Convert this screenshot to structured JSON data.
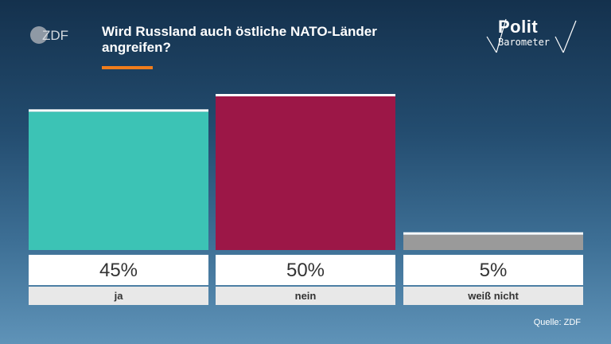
{
  "header": {
    "brand_logo_text": "ZDF",
    "title": "Wird Russland auch östliche NATO-Länder angreifen?",
    "accent_color": "#f07d1c"
  },
  "series_logo": {
    "line1": "Polit",
    "line2": "Barometer"
  },
  "chart_data": {
    "type": "bar",
    "title": "Wird Russland auch östliche NATO-Länder angreifen?",
    "categories": [
      "ja",
      "nein",
      "weiß nicht"
    ],
    "values": [
      45,
      50,
      5
    ],
    "value_labels": [
      "45%",
      "50%",
      "5%"
    ],
    "unit": "%",
    "ylim": [
      0,
      50
    ],
    "colors": [
      "#3cc3b5",
      "#9c1747",
      "#9a9a9a"
    ],
    "grid": false,
    "legend": "none"
  },
  "source": "Quelle: ZDF"
}
